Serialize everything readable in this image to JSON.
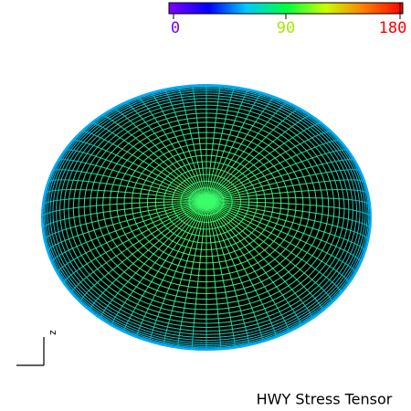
{
  "colorbar": {
    "ticks": [
      "0",
      "90",
      "180"
    ]
  },
  "axis_label": "z",
  "title": "HWY Stress Tensor"
}
